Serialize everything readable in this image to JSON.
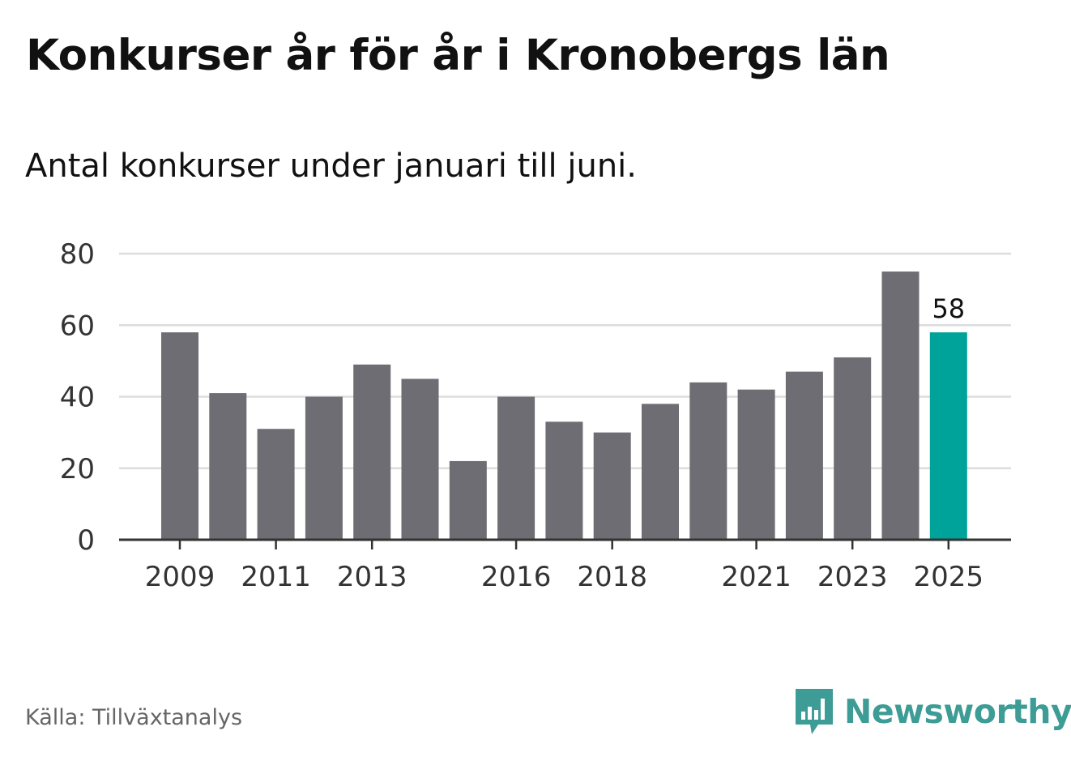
{
  "title": "Konkurser år för år i Kronobergs län",
  "subtitle": "Antal konkurser under januari till juni.",
  "source": "Källa: Tillväxtanalys",
  "brand": {
    "name": "Newsworthy",
    "icon": "newsworthy-logo-icon"
  },
  "colors": {
    "bar": "#6e6d73",
    "highlight": "#00a39a",
    "grid": "#dddddd",
    "axis": "#333333"
  },
  "chart_data": {
    "type": "bar",
    "categories": [
      "2009",
      "2010",
      "2011",
      "2012",
      "2013",
      "2014",
      "2015",
      "2016",
      "2017",
      "2018",
      "2019",
      "2020",
      "2021",
      "2022",
      "2023",
      "2024",
      "2025"
    ],
    "values": [
      58,
      41,
      31,
      40,
      49,
      45,
      22,
      40,
      33,
      30,
      38,
      44,
      42,
      47,
      51,
      75,
      58
    ],
    "highlight_category": "2025",
    "data_labels": [
      {
        "category": "2025",
        "text": "58"
      }
    ],
    "x_tick_labels": [
      "2009",
      "2011",
      "2013",
      "2016",
      "2018",
      "2021",
      "2023",
      "2025"
    ],
    "y_ticks": [
      0,
      20,
      40,
      60,
      80
    ],
    "ylim": [
      0,
      80
    ],
    "grid": true,
    "title": "Konkurser år för år i Kronobergs län",
    "xlabel": "",
    "ylabel": ""
  }
}
